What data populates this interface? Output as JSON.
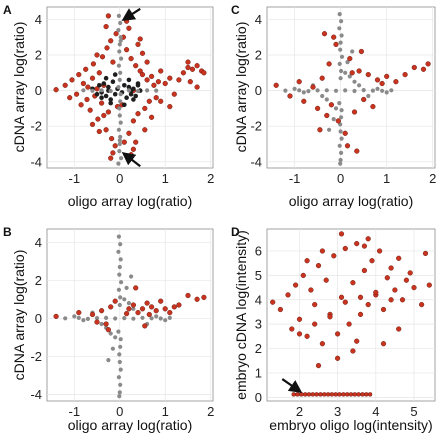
{
  "chart_data": [
    {
      "type": "scatter",
      "panel_label": "A",
      "xlabel": "oligo array log(ratio)",
      "ylabel": "cDNA array log(ratio)",
      "xlim": [
        -1.6,
        2.05
      ],
      "ylim": [
        -4.35,
        4.7
      ],
      "xticks": [
        -1,
        0,
        1,
        2
      ],
      "yticks": [
        -4,
        -2,
        0,
        2,
        4
      ],
      "xtick_labels": [
        "-1",
        "0",
        "1",
        "2"
      ],
      "ytick_labels": [
        "-4",
        "-2",
        "0",
        "2",
        "4"
      ],
      "grid": true,
      "layers": [
        "red",
        "dark",
        "gray"
      ],
      "colors": {
        "red": "#c8341f",
        "dark": "#1e1e1e",
        "gray": "#8a8a8a",
        "arrow": "#111111"
      },
      "annotations": [
        {
          "type": "arrow",
          "from": [
            0.45,
            4.6
          ],
          "to": [
            0.12,
            4.05
          ]
        },
        {
          "type": "arrow",
          "from": [
            0.45,
            -4.25
          ],
          "to": [
            0.12,
            -3.6
          ]
        }
      ],
      "series": [
        {
          "role": "red_cloud",
          "x": [
            -1.4,
            -1.2,
            -1.1,
            -1.05,
            -0.95,
            -0.9,
            -0.85,
            -0.8,
            -0.75,
            -0.72,
            -0.7,
            -0.65,
            -0.6,
            -0.58,
            -0.55,
            -0.5,
            -0.48,
            -0.45,
            -0.4,
            -0.38,
            -0.35,
            -0.3,
            -0.28,
            -0.25,
            -0.2,
            -0.18,
            -0.15,
            -0.1,
            -0.08,
            -0.05,
            0.05,
            0.08,
            0.1,
            0.15,
            0.2,
            0.25,
            0.3,
            0.35,
            0.4,
            0.45,
            0.5,
            0.55,
            0.6,
            0.65,
            0.7,
            0.75,
            0.8,
            0.85,
            0.9,
            1.0,
            1.1,
            1.2,
            1.3,
            1.4,
            1.5,
            1.6,
            1.7,
            1.8,
            -0.3,
            -0.2,
            0.2,
            0.3,
            0.4,
            -0.25,
            0.35,
            0.5,
            0.6,
            0.7,
            -0.45,
            -0.6,
            0.25,
            0.15,
            -0.15,
            1.55,
            1.7,
            1.85,
            1.5,
            0.9,
            1.1,
            -0.35,
            0.45,
            0.55,
            -0.5,
            0.3
          ],
          "y": [
            0.05,
            0.3,
            -0.4,
            0.6,
            -0.2,
            0.9,
            -0.8,
            0.4,
            1.2,
            -0.5,
            0.2,
            -1.1,
            0.7,
            1.5,
            -0.3,
            0.1,
            -1.6,
            1.0,
            -0.7,
            1.9,
            0.3,
            -2.2,
            2.4,
            -1.2,
            2.8,
            -2.7,
            1.6,
            -3.1,
            3.2,
            -0.9,
            -0.8,
            3.0,
            -2.9,
            2.3,
            -2.4,
            1.8,
            -1.7,
            1.4,
            -1.3,
            1.1,
            0.9,
            -1.0,
            0.6,
            -0.6,
            0.8,
            0.3,
            -0.4,
            0.5,
            1.1,
            0.4,
            0.7,
            -0.2,
            0.6,
            1.0,
            1.3,
            1.2,
            1.4,
            1.1,
            3.6,
            -3.8,
            3.5,
            -3.3,
            2.6,
            4.2,
            -2.9,
            2.1,
            1.6,
            -1.5,
            -2.3,
            -1.9,
            -3.6,
            3.9,
            -3.5,
            0.5,
            0.2,
            1.0,
            1.6,
            -0.6,
            -0.9,
            -1.4,
            2.9,
            -2.2,
            2.0,
            0.0
          ]
        },
        {
          "role": "dark_core",
          "x": [
            -0.6,
            -0.5,
            -0.45,
            -0.4,
            -0.35,
            -0.3,
            -0.25,
            -0.2,
            -0.15,
            -0.1,
            -0.05,
            0.05,
            0.1,
            0.15,
            0.2,
            0.25,
            0.3,
            0.35,
            0.4,
            0.45,
            -0.3,
            -0.2,
            -0.1,
            0.1,
            0.2,
            0.3,
            -0.4,
            0.4,
            -0.25,
            0.25
          ],
          "y": [
            0.1,
            -0.2,
            0.3,
            -0.1,
            0.4,
            -0.3,
            0.2,
            -0.5,
            0.5,
            -0.2,
            0.1,
            -0.1,
            0.3,
            -0.4,
            0.2,
            -0.2,
            0.1,
            -0.3,
            0.3,
            0.0,
            0.7,
            -0.7,
            0.9,
            -0.8,
            0.6,
            -0.5,
            -0.4,
            0.4,
            0.0,
            0.0
          ]
        },
        {
          "role": "gray_axis",
          "x": [
            -0.02,
            0.01,
            -0.03,
            0.02,
            0.0,
            -0.01,
            0.03,
            -0.02,
            0.01,
            0.0,
            -0.03,
            0.02,
            0.01,
            -0.01,
            0.0,
            0.02,
            -0.02,
            0.01,
            0.0,
            -0.01,
            0.03,
            -0.03,
            0.02,
            0.0,
            -0.8,
            -0.6,
            -0.4,
            -0.2,
            0.2,
            0.4,
            0.6,
            0.8
          ],
          "y": [
            4.2,
            3.8,
            3.4,
            3.0,
            2.6,
            2.2,
            1.8,
            1.4,
            1.0,
            0.6,
            0.2,
            -0.2,
            -0.6,
            -1.0,
            -1.4,
            -1.8,
            -2.2,
            -2.6,
            -3.0,
            -3.4,
            -3.8,
            -4.1,
            2.8,
            -2.8,
            0.02,
            -0.01,
            0.02,
            -0.02,
            0.01,
            -0.02,
            0.01,
            0.0
          ]
        }
      ]
    },
    {
      "type": "scatter",
      "panel_label": "B",
      "xlabel": "oligo array log(ratio)",
      "ylabel": "cDNA array log(ratio)",
      "xlim": [
        -1.6,
        2.05
      ],
      "ylim": [
        -4.35,
        4.7
      ],
      "xticks": [
        -1,
        0,
        1,
        2
      ],
      "yticks": [
        -4,
        -2,
        0,
        2,
        4
      ],
      "xtick_labels": [
        "-1",
        "0",
        "1",
        "2"
      ],
      "ytick_labels": [
        "-4",
        "-2",
        "0",
        "2",
        "4"
      ],
      "grid": true,
      "layers": [
        "gray",
        "red"
      ],
      "colors": {
        "red": "#c8341f",
        "gray": "#8a8a8a"
      },
      "series": [
        {
          "role": "gray",
          "x": [
            -0.9,
            -0.7,
            -0.5,
            -0.3,
            -0.1,
            0.1,
            0.3,
            0.5,
            0.7,
            0.9,
            1.1,
            -0.02,
            0.01,
            -0.03,
            0.02,
            0.0,
            -0.01,
            0.03,
            -0.02,
            0.01,
            0.0,
            -0.03,
            0.02,
            0.01,
            -0.01,
            0.0,
            0.02,
            -0.02,
            0.01,
            0.0,
            -0.01,
            0.1,
            -0.1,
            0.15,
            -0.15,
            0.2,
            -0.2,
            0.3,
            -0.3,
            0.25,
            -0.25,
            -0.6,
            -0.4,
            0.6,
            0.4,
            -0.8,
            0.8,
            -1.0,
            1.0,
            -1.2
          ],
          "y": [
            0.02,
            -0.03,
            0.01,
            0.02,
            -0.01,
            0.01,
            -0.02,
            0.03,
            0.0,
            -0.01,
            0.02,
            4.3,
            3.9,
            3.5,
            3.1,
            2.7,
            2.3,
            1.9,
            1.5,
            1.1,
            0.7,
            -0.7,
            -1.1,
            -1.5,
            -1.9,
            -2.3,
            -2.7,
            -3.1,
            -3.5,
            -3.9,
            -4.1,
            1.0,
            -1.0,
            1.6,
            -1.6,
            0.8,
            -0.8,
            0.5,
            -0.5,
            2.2,
            -2.2,
            0.3,
            -0.3,
            -0.3,
            0.3,
            -0.1,
            0.1,
            0.1,
            -0.1,
            0.0
          ]
        },
        {
          "role": "red",
          "x": [
            -1.4,
            -0.9,
            -0.6,
            -0.4,
            -0.3,
            -0.2,
            -0.1,
            0.2,
            0.3,
            0.4,
            0.5,
            0.6,
            0.7,
            0.8,
            0.9,
            1.0,
            1.1,
            1.2,
            1.3,
            1.5,
            1.7,
            1.85,
            -0.5,
            0.35,
            0.55,
            0.65,
            -0.25,
            0.15
          ],
          "y": [
            0.1,
            0.3,
            0.2,
            0.4,
            -0.3,
            0.6,
            0.9,
            0.5,
            0.7,
            0.3,
            0.5,
            0.8,
            0.6,
            0.4,
            0.9,
            0.5,
            0.3,
            0.6,
            0.7,
            1.2,
            1.0,
            1.1,
            -0.2,
            1.6,
            -0.4,
            0.2,
            -0.6,
            0.25
          ]
        }
      ]
    },
    {
      "type": "scatter",
      "panel_label": "C",
      "xlabel": "oligo array log(ratio)",
      "ylabel": "cDNA array log(ratio)",
      "xlim": [
        -1.6,
        2.05
      ],
      "ylim": [
        -4.35,
        4.7
      ],
      "xticks": [
        -1,
        0,
        1,
        2
      ],
      "yticks": [
        -4,
        -2,
        0,
        2,
        4
      ],
      "xtick_labels": [
        "-1",
        "0",
        "1",
        "2"
      ],
      "ytick_labels": [
        "-4",
        "-2",
        "0",
        "2",
        "4"
      ],
      "grid": true,
      "layers": [
        "gray",
        "red"
      ],
      "colors": {
        "red": "#c8341f",
        "gray": "#8a8a8a"
      },
      "series": [
        {
          "role": "gray",
          "x": [
            -0.9,
            -0.7,
            -0.5,
            -0.3,
            -0.1,
            0.1,
            0.3,
            0.5,
            0.7,
            0.9,
            1.1,
            -0.02,
            0.01,
            -0.03,
            0.02,
            0.0,
            -0.01,
            0.03,
            -0.02,
            0.01,
            0.0,
            -0.03,
            0.02,
            0.01,
            -0.01,
            0.0,
            0.02,
            -0.02,
            0.01,
            0.0,
            -0.01,
            0.1,
            -0.1,
            0.15,
            -0.15,
            0.2,
            -0.2,
            0.3,
            -0.3,
            0.25,
            -0.25,
            -0.6,
            -0.4,
            0.6,
            0.4,
            -0.8,
            0.8,
            -1.0,
            1.0,
            -1.2
          ],
          "y": [
            0.02,
            -0.03,
            0.01,
            0.02,
            -0.01,
            0.01,
            -0.02,
            0.03,
            0.0,
            -0.01,
            0.02,
            4.3,
            3.9,
            3.5,
            3.1,
            2.7,
            2.3,
            1.9,
            1.5,
            1.1,
            0.7,
            -0.7,
            -1.1,
            -1.5,
            -1.9,
            -2.3,
            -2.7,
            -3.1,
            -3.5,
            -3.9,
            -4.1,
            1.0,
            -1.0,
            1.6,
            -1.6,
            0.8,
            -0.8,
            0.5,
            -0.5,
            2.2,
            -2.2,
            0.3,
            -0.3,
            -0.3,
            0.3,
            -0.1,
            0.1,
            0.1,
            -0.1,
            0.0
          ]
        },
        {
          "role": "red",
          "x": [
            -1.4,
            -1.1,
            -0.9,
            -0.8,
            -0.6,
            -0.5,
            -0.4,
            -0.3,
            -0.25,
            -0.2,
            -0.1,
            0.1,
            0.2,
            0.3,
            0.4,
            0.5,
            0.6,
            0.7,
            0.8,
            0.9,
            1.0,
            1.2,
            1.4,
            1.6,
            1.8,
            1.9,
            -0.35,
            0.35,
            -0.15,
            0.15,
            0.45,
            -0.45,
            0.25,
            -0.05
          ],
          "y": [
            0.3,
            -0.3,
            0.5,
            -0.6,
            0.2,
            -1.0,
            0.7,
            -1.4,
            1.5,
            -0.8,
            2.6,
            -2.4,
            1.8,
            -1.2,
            1.1,
            -0.5,
            0.9,
            -0.9,
            0.6,
            0.4,
            0.8,
            0.5,
            0.9,
            1.3,
            1.2,
            1.5,
            3.2,
            -3.4,
            3.0,
            -3.1,
            2.2,
            -2.2,
            1.0,
            -1.7
          ]
        }
      ]
    },
    {
      "type": "scatter",
      "panel_label": "D",
      "xlabel": "embryo oligo log(intensity)",
      "ylabel": "embryo cDNA log(intensity)",
      "xlim": [
        1.15,
        5.55
      ],
      "ylim": [
        -0.15,
        6.9
      ],
      "xticks": [
        2,
        3,
        4,
        5
      ],
      "yticks": [
        0,
        1,
        2,
        3,
        4,
        5,
        6
      ],
      "xtick_labels": [
        "2",
        "3",
        "4",
        "5"
      ],
      "ytick_labels": [
        "0",
        "1",
        "2",
        "3",
        "4",
        "5",
        "6"
      ],
      "grid": true,
      "layers": [
        "red"
      ],
      "colors": {
        "red": "#c8341f",
        "arrow": "#111111"
      },
      "annotations": [
        {
          "type": "arrow",
          "from": [
            1.55,
            0.75
          ],
          "to": [
            1.98,
            0.28
          ]
        }
      ],
      "series": [
        {
          "role": "red_cloud",
          "x": [
            1.3,
            1.5,
            1.7,
            1.8,
            1.9,
            2.0,
            2.1,
            2.2,
            2.3,
            2.4,
            2.5,
            2.6,
            2.7,
            2.8,
            2.9,
            3.0,
            3.1,
            3.2,
            3.3,
            3.4,
            3.5,
            3.6,
            3.7,
            3.8,
            3.9,
            4.0,
            4.1,
            4.2,
            4.3,
            4.4,
            4.5,
            4.6,
            4.7,
            4.8,
            4.9,
            5.0,
            5.2,
            5.4,
            2.2,
            2.6,
            3.0,
            3.4,
            3.8,
            4.2,
            2.4,
            2.8,
            3.2,
            3.6,
            4.0,
            4.4,
            2.0,
            3.5,
            4.6,
            5.3,
            2.5,
            3.1,
            3.7
          ],
          "y": [
            3.9,
            3.6,
            4.2,
            2.8,
            4.6,
            3.2,
            5.0,
            2.5,
            4.4,
            3.0,
            5.4,
            2.2,
            4.8,
            3.4,
            5.8,
            2.6,
            4.1,
            6.1,
            3.0,
            4.7,
            6.3,
            3.4,
            5.2,
            3.8,
            5.6,
            4.2,
            6.0,
            3.6,
            4.9,
            5.3,
            4.4,
            5.7,
            4.0,
            4.8,
            5.1,
            4.5,
            3.8,
            4.6,
            5.6,
            6.0,
            1.6,
            1.9,
            6.5,
            2.2,
            3.8,
            3.3,
            3.9,
            4.1,
            4.3,
            4.0,
            2.6,
            2.3,
            2.8,
            5.9,
            1.3,
            6.7,
            6.2
          ]
        },
        {
          "role": "bottom_row",
          "x": [
            1.85,
            1.95,
            2.05,
            2.15,
            2.25,
            2.35,
            2.45,
            2.55,
            2.65,
            2.75,
            2.85,
            2.95,
            3.05,
            3.15,
            3.25,
            3.35,
            3.45,
            3.55,
            3.65,
            3.75,
            3.85
          ],
          "y": [
            0.12,
            0.12,
            0.12,
            0.12,
            0.12,
            0.12,
            0.12,
            0.12,
            0.12,
            0.12,
            0.12,
            0.12,
            0.12,
            0.12,
            0.12,
            0.12,
            0.12,
            0.12,
            0.12,
            0.12,
            0.12
          ]
        }
      ]
    }
  ]
}
